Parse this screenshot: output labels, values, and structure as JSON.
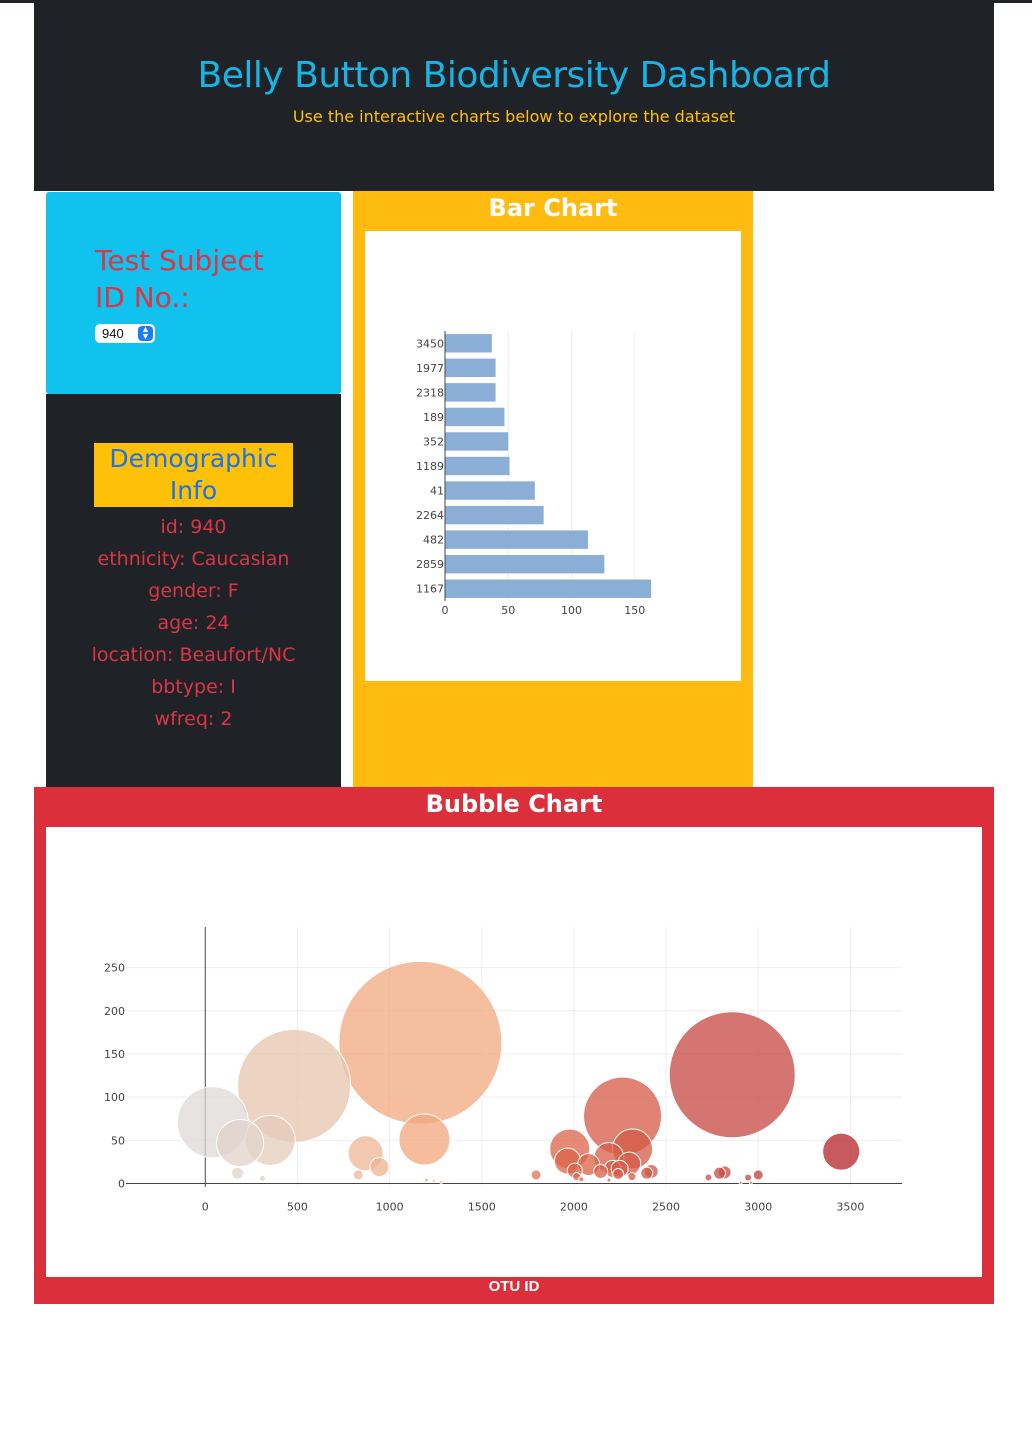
{
  "header": {
    "title": "Belly Button Biodiversity Dashboard",
    "subtitle": "Use the interactive charts below to explore the dataset"
  },
  "selector": {
    "label": "Test Subject ID No.:",
    "selected": "940"
  },
  "demographics": {
    "title": "Demographic Info",
    "items": [
      "id: 940",
      "ethnicity: Caucasian",
      "gender: F",
      "age: 24",
      "location: Beaufort/NC",
      "bbtype: I",
      "wfreq: 2"
    ]
  },
  "colors": {
    "header_bg": "#1f2226",
    "title": "#17b4e6",
    "subtitle": "#ffc107",
    "selector_bg": "#11c2ee",
    "bar_panel": "#ffbb0f",
    "bubble_panel": "#dc2f3c",
    "bar_fill": "#8aaed6",
    "text_red": "#dc3545"
  },
  "chart_data": [
    {
      "type": "bar",
      "orientation": "horizontal",
      "panel_title": "Bar Chart",
      "categories": [
        "1167",
        "2859",
        "482",
        "2264",
        "41",
        "1189",
        "352",
        "189",
        "2318",
        "1977",
        "3450"
      ],
      "values": [
        163,
        126,
        113,
        78,
        71,
        51,
        50,
        47,
        40,
        40,
        37
      ],
      "xticks": [
        0,
        50,
        100,
        150
      ],
      "xlim": [
        0,
        170
      ]
    },
    {
      "type": "scatter",
      "variant": "bubble",
      "panel_title": "Bubble Chart",
      "xlabel": "OTU ID",
      "xlim": [
        -430,
        3780
      ],
      "ylim": [
        -4,
        297
      ],
      "xticks": [
        0,
        500,
        1000,
        1500,
        2000,
        2500,
        3000,
        3500
      ],
      "yticks": [
        0,
        50,
        100,
        150,
        200,
        250
      ],
      "points": [
        {
          "x": 41,
          "y": 71
        },
        {
          "x": 189,
          "y": 47
        },
        {
          "x": 175,
          "y": 12
        },
        {
          "x": 310,
          "y": 6
        },
        {
          "x": 352,
          "y": 50
        },
        {
          "x": 482,
          "y": 113
        },
        {
          "x": 870,
          "y": 35
        },
        {
          "x": 830,
          "y": 10
        },
        {
          "x": 945,
          "y": 19
        },
        {
          "x": 1167,
          "y": 163
        },
        {
          "x": 1189,
          "y": 51
        },
        {
          "x": 1200,
          "y": 4
        },
        {
          "x": 1240,
          "y": 3
        },
        {
          "x": 1280,
          "y": 2
        },
        {
          "x": 1795,
          "y": 10
        },
        {
          "x": 1977,
          "y": 40
        },
        {
          "x": 1965,
          "y": 26
        },
        {
          "x": 2005,
          "y": 15
        },
        {
          "x": 2015,
          "y": 8
        },
        {
          "x": 2040,
          "y": 5
        },
        {
          "x": 2080,
          "y": 22
        },
        {
          "x": 2145,
          "y": 14
        },
        {
          "x": 2190,
          "y": 30
        },
        {
          "x": 2190,
          "y": 4
        },
        {
          "x": 2210,
          "y": 17
        },
        {
          "x": 2264,
          "y": 78
        },
        {
          "x": 2240,
          "y": 11
        },
        {
          "x": 2248,
          "y": 17
        },
        {
          "x": 2318,
          "y": 40
        },
        {
          "x": 2300,
          "y": 23
        },
        {
          "x": 2315,
          "y": 8
        },
        {
          "x": 2395,
          "y": 12
        },
        {
          "x": 2420,
          "y": 14
        },
        {
          "x": 2730,
          "y": 7
        },
        {
          "x": 2790,
          "y": 12
        },
        {
          "x": 2818,
          "y": 13
        },
        {
          "x": 2859,
          "y": 126
        },
        {
          "x": 2905,
          "y": 1
        },
        {
          "x": 2945,
          "y": 7
        },
        {
          "x": 2960,
          "y": 1
        },
        {
          "x": 3000,
          "y": 10
        },
        {
          "x": 3450,
          "y": 37
        }
      ]
    }
  ]
}
